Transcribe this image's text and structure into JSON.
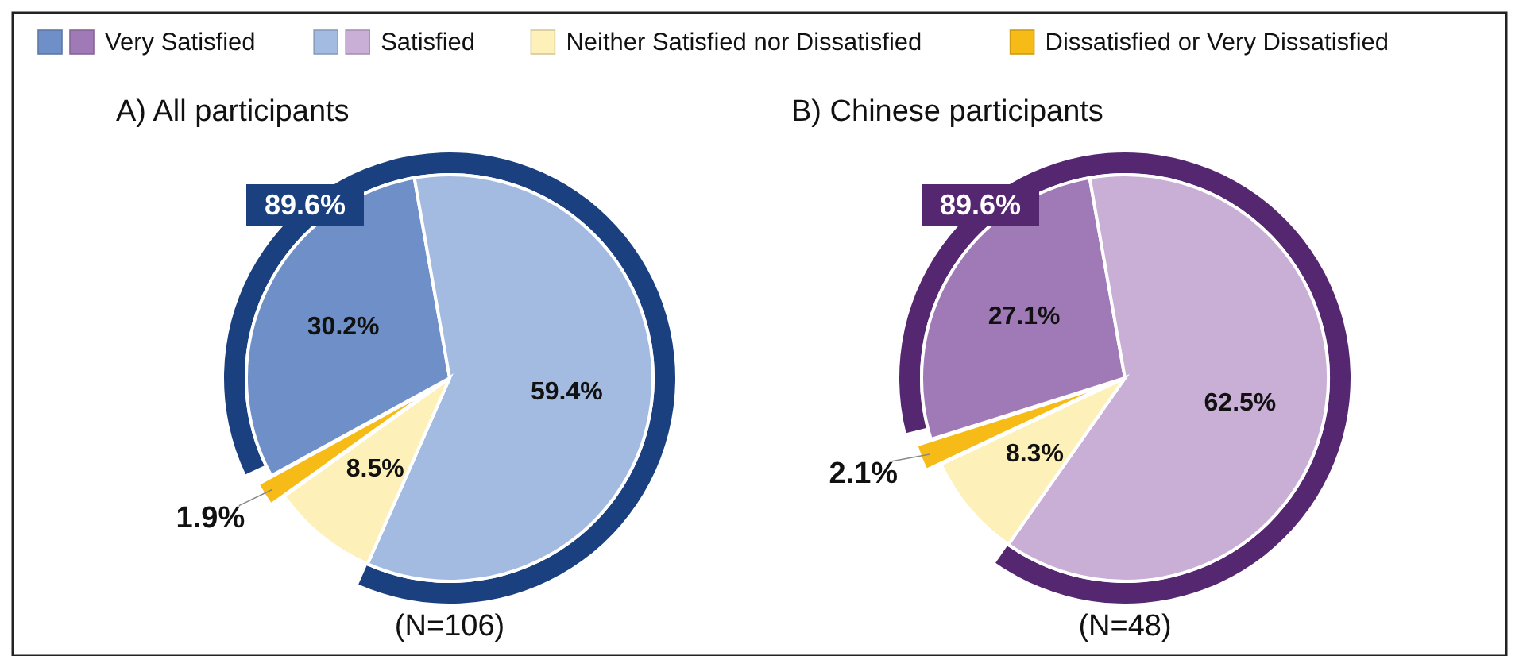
{
  "chart_data": [
    {
      "type": "pie",
      "title": "A) All participants",
      "categories": [
        "Very Satisfied",
        "Satisfied",
        "Neither Satisfied nor Dissatisfied",
        "Dissatisfied or Very Dissatisfied"
      ],
      "values": [
        30.2,
        59.4,
        8.5,
        1.9
      ],
      "value_labels": [
        "30.2%",
        "59.4%",
        "8.5%",
        "1.9%"
      ],
      "colors": [
        "#6f8fc8",
        "#a3bbe0",
        "#fdf0b8",
        "#f7bb18"
      ],
      "legend": "top",
      "annotations": [
        "89.6%",
        "(N=106)"
      ]
    },
    {
      "type": "pie",
      "title": "B) Chinese participants",
      "categories": [
        null,
        null,
        null,
        null
      ],
      "values": [
        27.1,
        62.5,
        8.3,
        2.1
      ],
      "value_labels": [
        "27.1%",
        "62.5%",
        "8.3%",
        "2.1%"
      ],
      "colors": [
        "#a07ab6",
        "#c9aed6",
        "#fdf0b8",
        "#f7bb18"
      ],
      "annotations": [
        "89.6%",
        "(N=48)"
      ]
    }
  ]
}
